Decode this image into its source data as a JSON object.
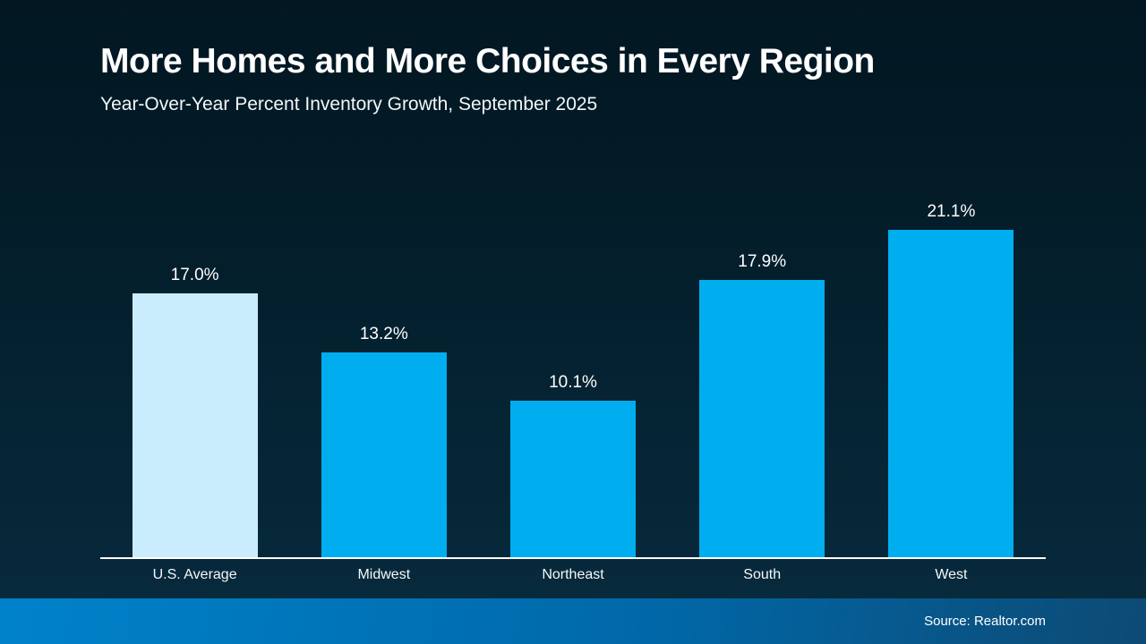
{
  "header": {
    "title": "More Homes and More Choices in Every Region",
    "subtitle": "Year-Over-Year Percent Inventory Growth, September 2025"
  },
  "footer": {
    "source": "Source: Realtor.com"
  },
  "chart_data": {
    "type": "bar",
    "title": "More Homes and More Choices in Every Region",
    "subtitle": "Year-Over-Year Percent Inventory Growth, September 2025",
    "categories": [
      "U.S. Average",
      "Midwest",
      "Northeast",
      "South",
      "West"
    ],
    "values": [
      17.0,
      13.2,
      10.1,
      17.9,
      21.1
    ],
    "value_labels": [
      "17.0%",
      "13.2%",
      "10.1%",
      "17.9%",
      "21.1%"
    ],
    "xlabel": "",
    "ylabel": "",
    "ylim": [
      0,
      21.1
    ],
    "grid": false,
    "legend": false,
    "bar_colors": [
      "#c9edfd",
      "#00aeef",
      "#00aeef",
      "#00aeef",
      "#00aeef"
    ],
    "pixels_per_unit": 17.34
  },
  "colors": {
    "background_top": "#021722",
    "background_bottom": "#082b3e",
    "bar_default": "#00aeef",
    "bar_highlight": "#c9edfd",
    "axis_line": "#ffffff",
    "footer_gradient_left": "#0082ca",
    "footer_gradient_right": "#0d4a74",
    "text": "#ffffff"
  }
}
